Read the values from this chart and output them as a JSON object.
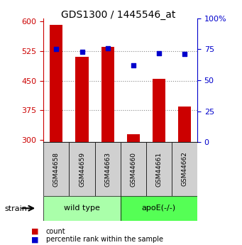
{
  "title": "GDS1300 / 1445546_at",
  "samples": [
    "GSM44658",
    "GSM44659",
    "GSM44663",
    "GSM44660",
    "GSM44661",
    "GSM44662"
  ],
  "counts": [
    590,
    510,
    535,
    315,
    455,
    385
  ],
  "percentiles": [
    75,
    73,
    76,
    62,
    72,
    71
  ],
  "ylim_left": [
    295,
    607
  ],
  "yticks_left": [
    300,
    375,
    450,
    525,
    600
  ],
  "ylim_right": [
    0,
    100
  ],
  "yticks_right": [
    0,
    25,
    50,
    75,
    100
  ],
  "bar_color": "#cc0000",
  "dot_color": "#0000cc",
  "groups": [
    {
      "label": "wild type",
      "start": 0,
      "end": 2,
      "color": "#aaffaa"
    },
    {
      "label": "apoE(-/-)",
      "start": 3,
      "end": 5,
      "color": "#55ff55"
    }
  ],
  "strain_label": "strain",
  "legend_count": "count",
  "legend_percentile": "percentile rank within the sample",
  "left_axis_color": "#cc0000",
  "right_axis_color": "#0000cc",
  "grid_ticks": [
    375,
    450,
    525
  ]
}
